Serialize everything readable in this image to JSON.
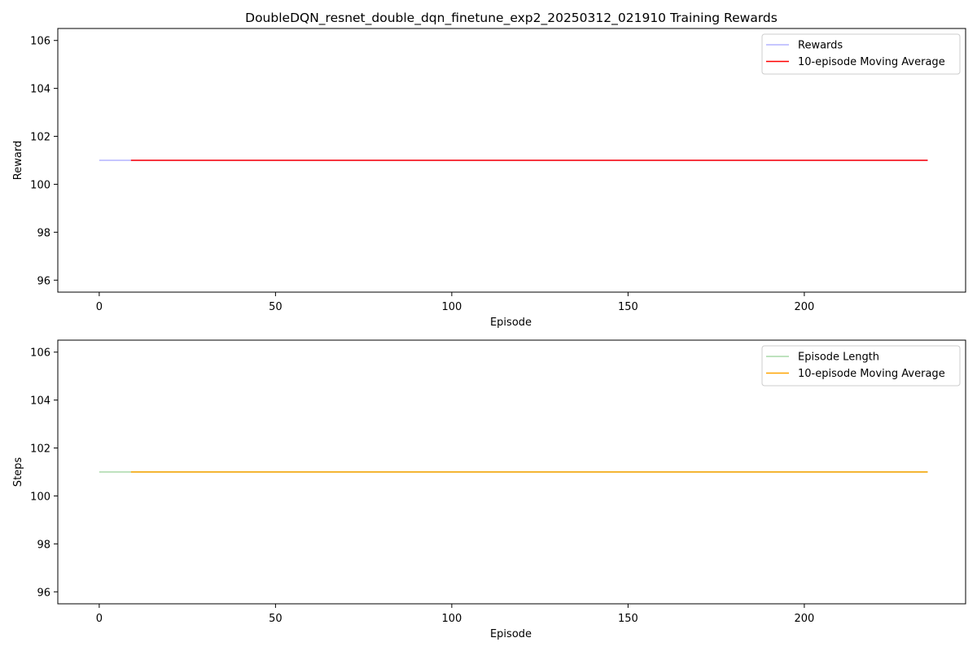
{
  "title": "DoubleDQN_resnet_double_dqn_finetune_exp2_20250312_021910 Training Rewards",
  "chart_data": [
    {
      "type": "line",
      "xlabel": "Episode",
      "ylabel": "Reward",
      "xlim": [
        -11.75,
        245.75
      ],
      "ylim": [
        95.5,
        106.5
      ],
      "xticks": [
        0,
        50,
        100,
        150,
        200
      ],
      "yticks": [
        96,
        98,
        100,
        102,
        104,
        106
      ],
      "legend": "top-right",
      "grid": false,
      "series": [
        {
          "name": "Rewards",
          "color": "#b3b3ff",
          "x": [
            0,
            235
          ],
          "y": [
            101,
            101
          ]
        },
        {
          "name": "10-episode Moving Average",
          "color": "#ff0000",
          "x": [
            9,
            235
          ],
          "y": [
            101,
            101
          ]
        }
      ]
    },
    {
      "type": "line",
      "xlabel": "Episode",
      "ylabel": "Steps",
      "xlim": [
        -11.75,
        245.75
      ],
      "ylim": [
        95.5,
        106.5
      ],
      "xticks": [
        0,
        50,
        100,
        150,
        200
      ],
      "yticks": [
        96,
        98,
        100,
        102,
        104,
        106
      ],
      "legend": "top-right",
      "grid": false,
      "series": [
        {
          "name": "Episode Length",
          "color": "#a8d8a8",
          "x": [
            0,
            235
          ],
          "y": [
            101,
            101
          ]
        },
        {
          "name": "10-episode Moving Average",
          "color": "#ffa500",
          "x": [
            9,
            235
          ],
          "y": [
            101,
            101
          ]
        }
      ]
    }
  ]
}
